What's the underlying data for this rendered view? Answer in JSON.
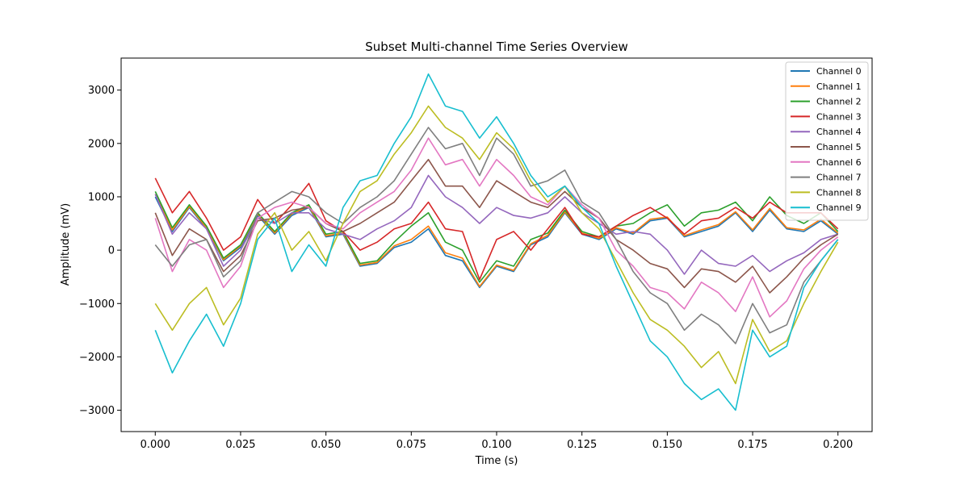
{
  "chart_data": {
    "type": "line",
    "title": "Subset Multi-channel Time Series Overview",
    "xlabel": "Time (s)",
    "ylabel": "Amplitude (mV)",
    "xlim": [
      -0.01,
      0.21
    ],
    "ylim": [
      -3400,
      3600
    ],
    "xticks": [
      0.0,
      0.025,
      0.05,
      0.075,
      0.1,
      0.125,
      0.15,
      0.175,
      0.2
    ],
    "xtick_labels": [
      "0.000",
      "0.025",
      "0.050",
      "0.075",
      "0.100",
      "0.125",
      "0.150",
      "0.175",
      "0.200"
    ],
    "yticks": [
      -3000,
      -2000,
      -1000,
      0,
      1000,
      2000,
      3000
    ],
    "ytick_labels": [
      "−3000",
      "−2000",
      "−1000",
      "0",
      "1000",
      "2000",
      "3000"
    ],
    "grid": false,
    "legend_position": "top-right",
    "x": [
      0.0,
      0.005,
      0.01,
      0.015,
      0.02,
      0.025,
      0.03,
      0.035,
      0.04,
      0.045,
      0.05,
      0.055,
      0.06,
      0.065,
      0.07,
      0.075,
      0.08,
      0.085,
      0.09,
      0.095,
      0.1,
      0.105,
      0.11,
      0.115,
      0.12,
      0.125,
      0.13,
      0.135,
      0.14,
      0.145,
      0.15,
      0.155,
      0.16,
      0.165,
      0.17,
      0.175,
      0.18,
      0.185,
      0.19,
      0.195,
      0.2
    ],
    "series": [
      {
        "name": "Channel 0",
        "color": "#1f77b4",
        "values": [
          1000,
          350,
          800,
          400,
          -200,
          50,
          650,
          300,
          650,
          800,
          250,
          300,
          -300,
          -250,
          50,
          150,
          400,
          -100,
          -200,
          -700,
          -300,
          -400,
          100,
          250,
          700,
          300,
          200,
          400,
          300,
          550,
          600,
          250,
          350,
          450,
          700,
          350,
          750,
          400,
          350,
          550,
          300
        ]
      },
      {
        "name": "Channel 1",
        "color": "#ff7f0e",
        "values": [
          1050,
          380,
          820,
          420,
          -180,
          80,
          680,
          320,
          680,
          820,
          270,
          320,
          -280,
          -230,
          80,
          200,
          450,
          -50,
          -150,
          -680,
          -280,
          -380,
          120,
          280,
          720,
          320,
          220,
          420,
          320,
          580,
          620,
          270,
          380,
          480,
          720,
          380,
          780,
          420,
          380,
          580,
          320
        ]
      },
      {
        "name": "Channel 2",
        "color": "#2ca02c",
        "values": [
          1100,
          420,
          850,
          450,
          -150,
          100,
          700,
          350,
          700,
          850,
          300,
          350,
          -250,
          -200,
          150,
          450,
          700,
          150,
          0,
          -600,
          -200,
          -300,
          200,
          320,
          750,
          350,
          250,
          450,
          500,
          700,
          850,
          450,
          700,
          750,
          900,
          550,
          1000,
          650,
          500,
          700,
          350
        ]
      },
      {
        "name": "Channel 3",
        "color": "#d62728",
        "values": [
          1350,
          700,
          1100,
          600,
          0,
          250,
          950,
          500,
          850,
          1250,
          550,
          350,
          0,
          150,
          400,
          500,
          900,
          400,
          350,
          -550,
          200,
          350,
          0,
          400,
          800,
          300,
          250,
          450,
          650,
          800,
          600,
          300,
          550,
          600,
          800,
          600,
          900,
          700,
          700,
          700,
          400
        ]
      },
      {
        "name": "Channel 4",
        "color": "#9467bd",
        "values": [
          1050,
          300,
          700,
          400,
          -300,
          0,
          600,
          500,
          700,
          700,
          400,
          300,
          200,
          400,
          550,
          800,
          1400,
          1000,
          800,
          500,
          800,
          650,
          600,
          700,
          1000,
          700,
          500,
          300,
          350,
          300,
          0,
          -450,
          0,
          -250,
          -300,
          -100,
          -400,
          -200,
          -50,
          200,
          300
        ]
      },
      {
        "name": "Channel 5",
        "color": "#8c564b",
        "values": [
          700,
          -100,
          400,
          200,
          -400,
          -100,
          550,
          600,
          750,
          800,
          500,
          350,
          500,
          700,
          900,
          1300,
          1700,
          1200,
          1200,
          800,
          1300,
          1100,
          900,
          800,
          1100,
          800,
          600,
          200,
          0,
          -250,
          -350,
          -700,
          -350,
          -400,
          -600,
          -300,
          -800,
          -500,
          -150,
          100,
          300
        ]
      },
      {
        "name": "Channel 6",
        "color": "#e377c2",
        "values": [
          600,
          -400,
          200,
          0,
          -700,
          -300,
          600,
          800,
          900,
          800,
          500,
          400,
          700,
          900,
          1100,
          1500,
          2100,
          1600,
          1700,
          1200,
          1700,
          1400,
          1000,
          850,
          1200,
          850,
          600,
          0,
          -300,
          -700,
          -800,
          -1100,
          -600,
          -800,
          -1150,
          -500,
          -1250,
          -950,
          -350,
          0,
          250
        ]
      },
      {
        "name": "Channel 7",
        "color": "#7f7f7f",
        "values": [
          100,
          -300,
          100,
          200,
          -500,
          -200,
          700,
          900,
          1100,
          1000,
          700,
          500,
          800,
          1000,
          1300,
          1800,
          2300,
          1900,
          2000,
          1400,
          2100,
          1800,
          1200,
          1300,
          1500,
          900,
          700,
          200,
          -400,
          -800,
          -1000,
          -1500,
          -1200,
          -1400,
          -1750,
          -1000,
          -1550,
          -1400,
          -600,
          -200,
          200
        ]
      },
      {
        "name": "Channel 8",
        "color": "#bcbd22",
        "values": [
          -1000,
          -1500,
          -1000,
          -700,
          -1400,
          -900,
          300,
          700,
          0,
          350,
          -200,
          500,
          1100,
          1300,
          1800,
          2200,
          2700,
          2300,
          2100,
          1700,
          2200,
          1900,
          1300,
          900,
          1200,
          700,
          400,
          -200,
          -800,
          -1300,
          -1500,
          -1800,
          -2200,
          -1900,
          -2500,
          -1300,
          -1900,
          -1700,
          -1000,
          -400,
          150
        ]
      },
      {
        "name": "Channel 9",
        "color": "#17becf",
        "values": [
          -1500,
          -2300,
          -1700,
          -1200,
          -1800,
          -1000,
          200,
          600,
          -400,
          100,
          -300,
          800,
          1300,
          1400,
          2000,
          2500,
          3300,
          2700,
          2600,
          2100,
          2500,
          2000,
          1400,
          1000,
          1200,
          800,
          500,
          -300,
          -1000,
          -1700,
          -2000,
          -2500,
          -2800,
          -2600,
          -3000,
          -1500,
          -2000,
          -1800,
          -700,
          -200,
          200
        ]
      }
    ]
  }
}
